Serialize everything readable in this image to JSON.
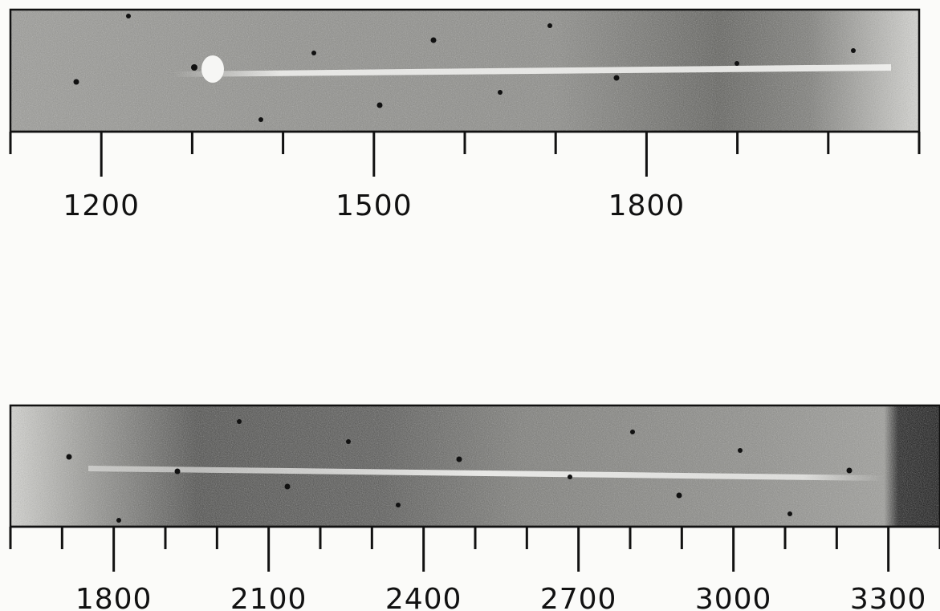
{
  "colors": {
    "background": "#fbfbf9",
    "plate_light": "#d4d4d0",
    "plate_dark": "#3a3a3a",
    "spectrum_trace": "#f3f3f1",
    "ink": "#111111"
  },
  "panels": [
    {
      "id": "top",
      "axis_range": [
        1100,
        2100
      ],
      "major_ticks": [
        1200,
        1500,
        1800
      ],
      "labels": [
        "1200",
        "1500",
        "1800"
      ]
    },
    {
      "id": "bottom",
      "axis_range": [
        1600,
        3400
      ],
      "major_ticks": [
        1800,
        2100,
        2400,
        2700,
        3000,
        3300
      ],
      "labels": [
        "1800",
        "2100",
        "2400",
        "2700",
        "3000",
        "3300"
      ]
    }
  ]
}
